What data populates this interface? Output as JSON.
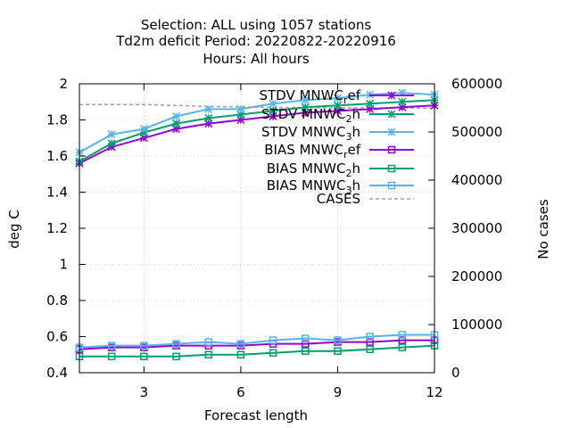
{
  "title": {
    "line1": "Selection: ALL using  1057 stations",
    "line2": "Td2m deficit   Period: 20220822-20220916",
    "line3": "Hours:  All hours"
  },
  "colors": {
    "purple": "#9400d3",
    "green": "#009e73",
    "blue": "#56b4e9",
    "cases": "#a0a0a0"
  },
  "chart_data": {
    "type": "line",
    "xlabel": "Forecast length",
    "ylabel": "deg C",
    "y2label": "No cases",
    "xlim": [
      1,
      12
    ],
    "ylim": [
      0.4,
      2.0
    ],
    "y2lim": [
      0,
      600000
    ],
    "x_ticks": [
      3,
      6,
      9,
      12
    ],
    "y_ticks": [
      0.4,
      0.6,
      0.8,
      1,
      1.2,
      1.4,
      1.6,
      1.8,
      2
    ],
    "y2_ticks": [
      0,
      100000,
      200000,
      300000,
      400000,
      500000,
      600000
    ],
    "grid": true,
    "legend_position": "top-right",
    "x": [
      1,
      2,
      3,
      4,
      5,
      6,
      7,
      8,
      9,
      10,
      11,
      12
    ],
    "series": [
      {
        "legend_main": "STDV MNWC",
        "legend_sub": "r",
        "legend_tail": "ef",
        "axis": "y1",
        "color": "#9400d3",
        "marker": "star",
        "values": [
          1.56,
          1.65,
          1.7,
          1.75,
          1.78,
          1.8,
          1.82,
          1.84,
          1.85,
          1.86,
          1.87,
          1.88
        ]
      },
      {
        "legend_main": "STDV MNWC",
        "legend_sub": "2",
        "legend_tail": "h",
        "axis": "y1",
        "color": "#009e73",
        "marker": "star",
        "values": [
          1.57,
          1.67,
          1.73,
          1.78,
          1.81,
          1.83,
          1.85,
          1.87,
          1.88,
          1.89,
          1.9,
          1.91
        ]
      },
      {
        "legend_main": "STDV MNWC",
        "legend_sub": "3",
        "legend_tail": "h",
        "axis": "y1",
        "color": "#56b4e9",
        "marker": "star",
        "values": [
          1.62,
          1.72,
          1.75,
          1.82,
          1.86,
          1.86,
          1.89,
          1.91,
          1.92,
          1.94,
          1.95,
          1.94
        ]
      },
      {
        "legend_main": "BIAS MNWC",
        "legend_sub": "r",
        "legend_tail": "ef",
        "axis": "y1",
        "color": "#9400d3",
        "marker": "square",
        "values": [
          0.53,
          0.54,
          0.54,
          0.55,
          0.55,
          0.55,
          0.56,
          0.56,
          0.57,
          0.57,
          0.58,
          0.58
        ]
      },
      {
        "legend_main": "BIAS MNWC",
        "legend_sub": "2",
        "legend_tail": "h",
        "axis": "y1",
        "color": "#009e73",
        "marker": "square",
        "values": [
          0.49,
          0.49,
          0.49,
          0.49,
          0.5,
          0.5,
          0.51,
          0.52,
          0.52,
          0.53,
          0.54,
          0.55
        ]
      },
      {
        "legend_main": "BIAS MNWC",
        "legend_sub": "3",
        "legend_tail": "h",
        "axis": "y1",
        "color": "#56b4e9",
        "marker": "square",
        "values": [
          0.54,
          0.55,
          0.55,
          0.56,
          0.57,
          0.56,
          0.58,
          0.59,
          0.58,
          0.6,
          0.61,
          0.61
        ]
      },
      {
        "legend_main": "CASES",
        "legend_sub": "",
        "legend_tail": "",
        "axis": "y2",
        "color": "#a0a0a0",
        "marker": "none",
        "dashed": true,
        "values": [
          557000,
          557000,
          557000,
          555000,
          553000,
          552000,
          551000,
          551000,
          550000,
          550000,
          550000,
          549000
        ]
      }
    ]
  }
}
